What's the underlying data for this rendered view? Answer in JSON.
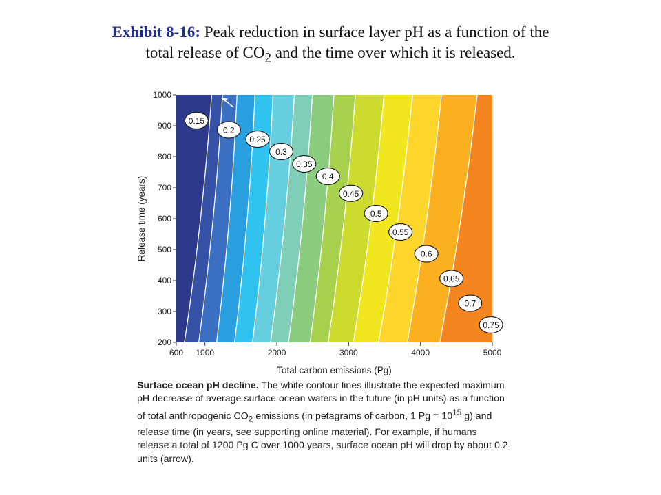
{
  "title": {
    "label": "Exhibit 8-16:",
    "text_before_sub": " Peak reduction in surface layer pH as a function of the total release of CO",
    "subscript": "2",
    "text_after_sub": " and the time over which it is released."
  },
  "caption": {
    "bold": "Surface ocean pH decline.",
    "part1": " The white contour lines illustrate the expected maximum pH decrease of average surface ocean waters in the future (in pH units) as a function of total anthropogenic CO",
    "sub": "2",
    "part2": " emissions (in petagrams of carbon, 1 Pg = 10",
    "sup": "15",
    "part3": " g) and release time (in years, see supporting online material). For example, if humans release a total of 1200 Pg C over 1000 years, surface ocean pH will drop by about 0.2 units (arrow)."
  },
  "chart_data": {
    "type": "heatmap",
    "xlabel": "Total carbon emissions (Pg)",
    "ylabel": "Release time (years)",
    "xlim": [
      600,
      5000
    ],
    "ylim": [
      200,
      1000
    ],
    "x_ticks": [
      "600",
      "1000",
      "2000",
      "3000",
      "4000",
      "5000"
    ],
    "x_tick_values": [
      600,
      1000,
      2000,
      3000,
      4000,
      5000
    ],
    "y_ticks": [
      "200",
      "300",
      "400",
      "500",
      "600",
      "700",
      "800",
      "900",
      "1000"
    ],
    "y_tick_values": [
      200,
      300,
      400,
      500,
      600,
      700,
      800,
      900,
      1000
    ],
    "contour_levels": [
      {
        "label": "0.15",
        "emissions_at_1000yr": 1100,
        "emissions_at_200yr": 700,
        "label_at": [
          1150,
          930
        ]
      },
      {
        "label": "0.2",
        "emissions_at_1000yr": 1250,
        "emissions_at_200yr": 900,
        "label_at": [
          1600,
          900
        ]
      },
      {
        "label": "0.25",
        "emissions_at_1000yr": 1450,
        "emissions_at_200yr": 1150,
        "label_at": [
          2000,
          870
        ]
      },
      {
        "label": "0.3",
        "emissions_at_1000yr": 1700,
        "emissions_at_200yr": 1400,
        "label_at": [
          2330,
          830
        ]
      },
      {
        "label": "0.35",
        "emissions_at_1000yr": 1950,
        "emissions_at_200yr": 1650,
        "label_at": [
          2650,
          790
        ]
      },
      {
        "label": "0.4",
        "emissions_at_1000yr": 2250,
        "emissions_at_200yr": 1900,
        "label_at": [
          2980,
          750
        ]
      },
      {
        "label": "0.45",
        "emissions_at_1000yr": 2500,
        "emissions_at_200yr": 2150,
        "label_at": [
          3300,
          695
        ]
      },
      {
        "label": "0.5",
        "emissions_at_1000yr": 2800,
        "emissions_at_200yr": 2450,
        "label_at": [
          3650,
          630
        ]
      },
      {
        "label": "0.55",
        "emissions_at_1000yr": 3100,
        "emissions_at_200yr": 2700,
        "label_at": [
          3990,
          570
        ]
      },
      {
        "label": "0.6",
        "emissions_at_1000yr": 3500,
        "emissions_at_200yr": 3050,
        "label_at": [
          4350,
          500
        ]
      },
      {
        "label": "0.65",
        "emissions_at_1000yr": 3900,
        "emissions_at_200yr": 3400,
        "label_at": [
          4700,
          420
        ]
      },
      {
        "label": "0.7",
        "emissions_at_1000yr": 4300,
        "emissions_at_200yr": 3800,
        "label_at": [
          4960,
          340
        ]
      },
      {
        "label": "0.75",
        "emissions_at_1000yr": 4800,
        "emissions_at_200yr": 4250,
        "label_at": [
          5250,
          270
        ]
      }
    ],
    "band_colors": [
      "#2d3a8c",
      "#3652a6",
      "#3b6fc1",
      "#2a9fe0",
      "#31c3f0",
      "#65cfe0",
      "#7fcfb8",
      "#8ccc7e",
      "#a8d14e",
      "#cddb2f",
      "#f2e61e",
      "#fed52b",
      "#fbb11f",
      "#f5861f",
      "#ea5a22",
      "#df2d24"
    ],
    "arrow": {
      "x": 1400,
      "y": 960,
      "points_to": [
        1230,
        990
      ]
    },
    "contour_color": "#ffffff",
    "grid": false
  }
}
